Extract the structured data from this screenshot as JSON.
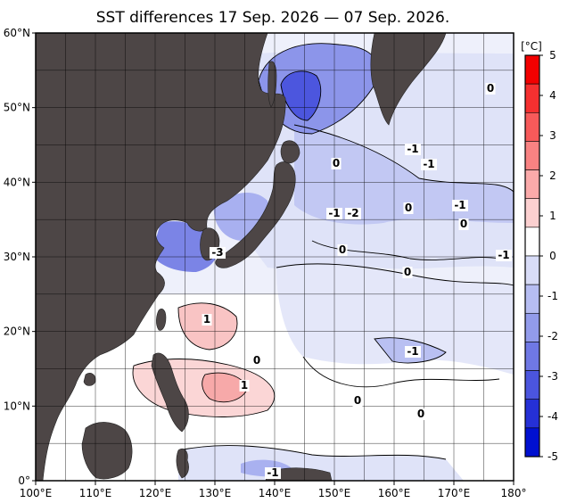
{
  "title": "SST differences 17 Sep. 2026 — 07 Sep. 2026.",
  "map": {
    "lon_range": [
      100,
      180
    ],
    "lat_range": [
      0,
      60
    ],
    "lon_ticks": [
      "100°E",
      "110°E",
      "120°E",
      "130°E",
      "140°E",
      "150°E",
      "160°E",
      "170°E",
      "180°"
    ],
    "lat_ticks": [
      "60°N",
      "50°N",
      "40°N",
      "30°N",
      "20°N",
      "10°N",
      "0°"
    ],
    "grid_step_deg": 5,
    "land_color": "#4d4646"
  },
  "colorbar": {
    "unit": "[°C]",
    "labels": [
      "5",
      "4",
      "3",
      "2",
      "1",
      "0",
      "-1",
      "-2",
      "-3",
      "-4",
      "-5"
    ],
    "colors": [
      "#f20000",
      "#f53030",
      "#f75a5a",
      "#f98282",
      "#fbaaaa",
      "#fcd0d0",
      "#ffffff",
      "#d8dcf7",
      "#b6bdf2",
      "#929beb",
      "#6f78e5",
      "#4b55de",
      "#2530d6",
      "#0010d0"
    ]
  },
  "contour_labels": [
    "-3",
    "0",
    "0",
    "-1",
    "-1",
    "-1",
    "-2",
    "0",
    "-1",
    "0",
    "-1",
    "0",
    "0",
    "1",
    "0",
    "-1",
    "1",
    "0",
    "0",
    "-1"
  ]
}
